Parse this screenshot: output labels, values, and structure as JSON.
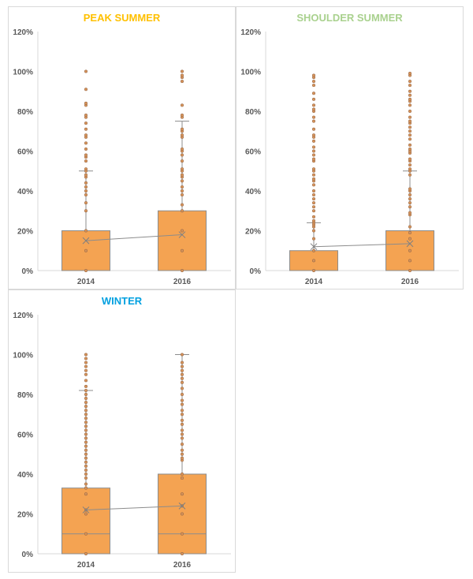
{
  "chart_data": [
    {
      "type": "box",
      "title": "PEAK SUMMER",
      "title_color": "#ffc000",
      "categories": [
        "2014",
        "2016"
      ],
      "yticks": [
        "0%",
        "20%",
        "40%",
        "60%",
        "80%",
        "100%",
        "120%"
      ],
      "ylim": [
        0,
        120
      ],
      "series": [
        {
          "name": "2014",
          "q1": 0,
          "median": 0,
          "q3": 20,
          "whisker_low": 0,
          "whisker_high": 50,
          "mean": 15,
          "points": [
            0,
            10,
            20,
            30,
            34,
            38,
            40,
            42,
            44,
            47,
            48,
            50,
            51,
            55,
            57,
            58,
            61,
            64,
            67,
            68,
            71,
            74,
            77,
            78,
            83,
            84,
            91,
            100
          ]
        },
        {
          "name": "2016",
          "q1": 0,
          "median": 0,
          "q3": 30,
          "whisker_low": 0,
          "whisker_high": 75,
          "mean": 18,
          "points": [
            0,
            10,
            20,
            30,
            33,
            38,
            40,
            42,
            45,
            47,
            48,
            50,
            51,
            55,
            58,
            60,
            61,
            67,
            68,
            70,
            71,
            77,
            78,
            83,
            95,
            97,
            98,
            100
          ]
        }
      ]
    },
    {
      "type": "box",
      "title": "SHOULDER SUMMER",
      "title_color": "#a9d18e",
      "categories": [
        "2014",
        "2016"
      ],
      "yticks": [
        "0%",
        "20%",
        "40%",
        "60%",
        "80%",
        "100%",
        "120%"
      ],
      "ylim": [
        0,
        120
      ],
      "series": [
        {
          "name": "2014",
          "q1": 0,
          "median": 0,
          "q3": 10,
          "whisker_low": 0,
          "whisker_high": 24,
          "mean": 12,
          "points": [
            0,
            5,
            10,
            16,
            20,
            22,
            23,
            24,
            25,
            27,
            30,
            32,
            34,
            36,
            38,
            40,
            43,
            45,
            46,
            48,
            50,
            51,
            55,
            56,
            58,
            60,
            62,
            65,
            67,
            68,
            71,
            75,
            77,
            80,
            81,
            83,
            86,
            89,
            93,
            95,
            97,
            98
          ]
        },
        {
          "name": "2016",
          "q1": 0,
          "median": 0,
          "q3": 20,
          "whisker_low": 0,
          "whisker_high": 50,
          "mean": 13.5,
          "points": [
            0,
            5,
            10,
            16,
            19,
            22,
            28,
            29,
            32,
            34,
            36,
            38,
            40,
            41,
            48,
            50,
            51,
            53,
            55,
            56,
            59,
            60,
            61,
            63,
            66,
            68,
            70,
            72,
            74,
            75,
            77,
            80,
            83,
            85,
            86,
            88,
            90,
            93,
            95,
            98,
            99
          ]
        }
      ]
    },
    {
      "type": "box",
      "title": "WINTER",
      "title_color": "#00a0e0",
      "categories": [
        "2014",
        "2016"
      ],
      "yticks": [
        "0%",
        "20%",
        "40%",
        "60%",
        "80%",
        "100%",
        "120%"
      ],
      "ylim": [
        0,
        120
      ],
      "series": [
        {
          "name": "2014",
          "q1": 0,
          "median": 10,
          "q3": 33,
          "whisker_low": 0,
          "whisker_high": 82,
          "mean": 22,
          "points": [
            0,
            10,
            20,
            22,
            30,
            33,
            35,
            38,
            40,
            42,
            44,
            46,
            48,
            50,
            52,
            54,
            56,
            58,
            60,
            62,
            64,
            66,
            68,
            70,
            72,
            74,
            76,
            78,
            80,
            82,
            84,
            87,
            90,
            92,
            94,
            96,
            98,
            100
          ]
        },
        {
          "name": "2016",
          "q1": 0,
          "median": 10,
          "q3": 40,
          "whisker_low": 0,
          "whisker_high": 100,
          "mean": 24,
          "points": [
            0,
            10,
            20,
            24,
            30,
            38,
            40,
            47,
            48,
            50,
            52,
            55,
            58,
            60,
            62,
            65,
            67,
            70,
            72,
            75,
            77,
            80,
            83,
            86,
            88,
            90,
            92,
            94,
            96,
            100
          ]
        }
      ]
    }
  ]
}
